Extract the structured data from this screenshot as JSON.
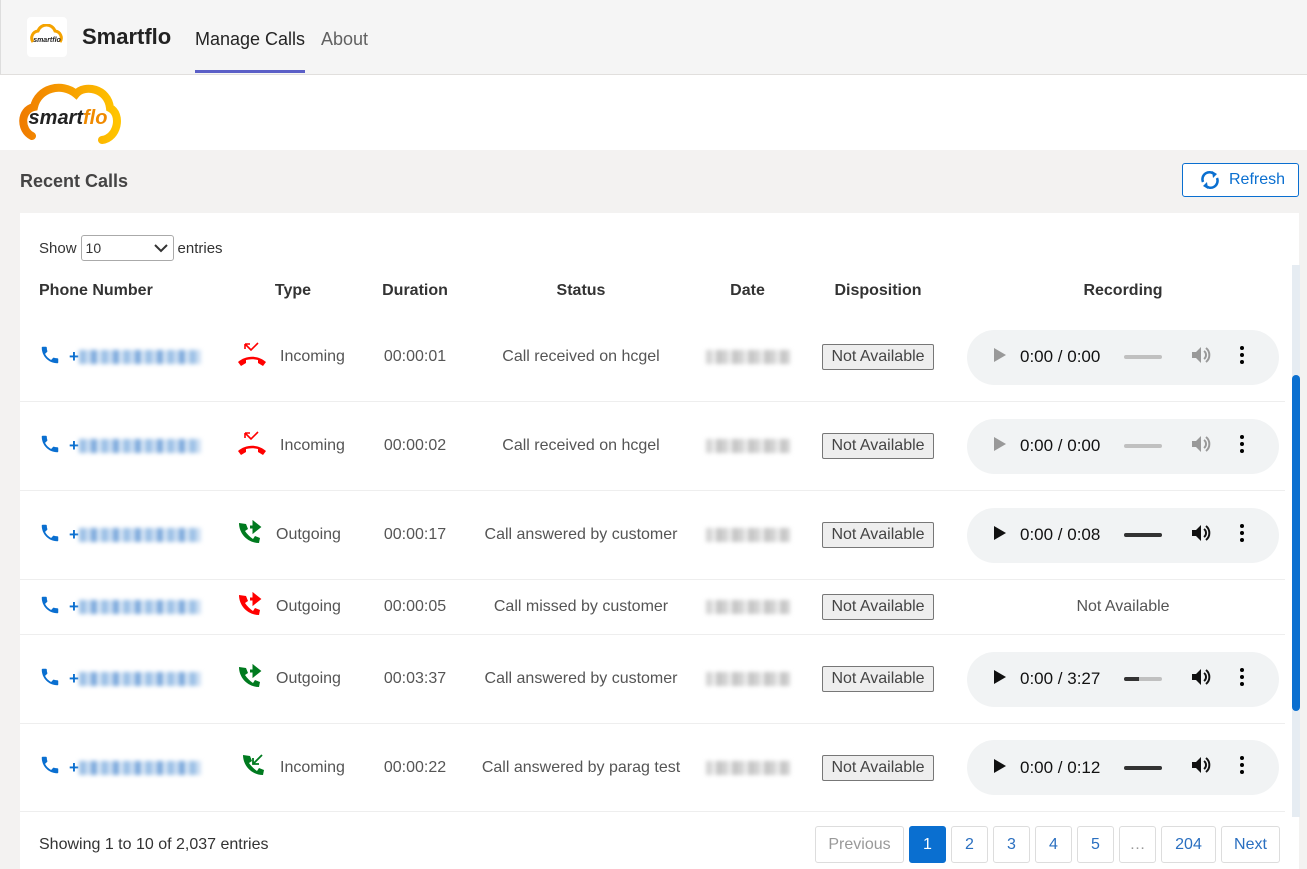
{
  "app": {
    "name": "Smartflo",
    "tabs": [
      {
        "label": "Manage Calls",
        "active": true
      },
      {
        "label": "About",
        "active": false
      }
    ],
    "logo_text": "smartflo"
  },
  "section": {
    "title": "Recent Calls",
    "refresh_label": "Refresh"
  },
  "length": {
    "show_label": "Show",
    "value": "10",
    "entries_label": "entries"
  },
  "columns": [
    "Phone Number",
    "Type",
    "Duration",
    "Status",
    "Date",
    "Disposition",
    "Recording"
  ],
  "rows": [
    {
      "type": "Incoming",
      "type_icon": "missed-incoming-call-icon",
      "icon_color": "#ff0000",
      "duration": "00:00:01",
      "status": "Call received on hcgel",
      "disposition": "Not Available",
      "recording": {
        "time": "0:00 / 0:00",
        "enabled": false,
        "progress": 0
      }
    },
    {
      "type": "Incoming",
      "type_icon": "missed-incoming-call-icon",
      "icon_color": "#ff0000",
      "duration": "00:00:02",
      "status": "Call received on hcgel",
      "disposition": "Not Available",
      "recording": {
        "time": "0:00 / 0:00",
        "enabled": false,
        "progress": 0
      }
    },
    {
      "type": "Outgoing",
      "type_icon": "outgoing-call-icon",
      "icon_color": "#007a1f",
      "duration": "00:00:17",
      "status": "Call answered by customer",
      "disposition": "Not Available",
      "recording": {
        "time": "0:00 / 0:08",
        "enabled": true,
        "progress": 1
      }
    },
    {
      "type": "Outgoing",
      "type_icon": "outgoing-call-icon",
      "icon_color": "#ff0000",
      "duration": "00:00:05",
      "status": "Call missed by customer",
      "disposition": "Not Available",
      "recording": null,
      "recording_text": "Not Available"
    },
    {
      "type": "Outgoing",
      "type_icon": "outgoing-call-icon",
      "icon_color": "#007a1f",
      "duration": "00:03:37",
      "status": "Call answered by customer",
      "disposition": "Not Available",
      "recording": {
        "time": "0:00 / 3:27",
        "enabled": true,
        "progress": 0.4
      }
    },
    {
      "type": "Incoming",
      "type_icon": "incoming-call-icon",
      "icon_color": "#007a1f",
      "duration": "00:00:22",
      "status": "Call answered by parag test",
      "disposition": "Not Available",
      "recording": {
        "time": "0:00 / 0:12",
        "enabled": true,
        "progress": 1
      }
    }
  ],
  "footer": {
    "info": "Showing 1 to 10 of 2,037 entries"
  },
  "pagination": [
    {
      "label": "Previous",
      "state": "disabled"
    },
    {
      "label": "1",
      "state": "active"
    },
    {
      "label": "2"
    },
    {
      "label": "3"
    },
    {
      "label": "4"
    },
    {
      "label": "5"
    },
    {
      "label": "…",
      "state": "ellipsis"
    },
    {
      "label": "204"
    },
    {
      "label": "Next"
    }
  ],
  "colors": {
    "accent": "#0a6fd0",
    "tab_indicator": "#5b5fc7"
  }
}
